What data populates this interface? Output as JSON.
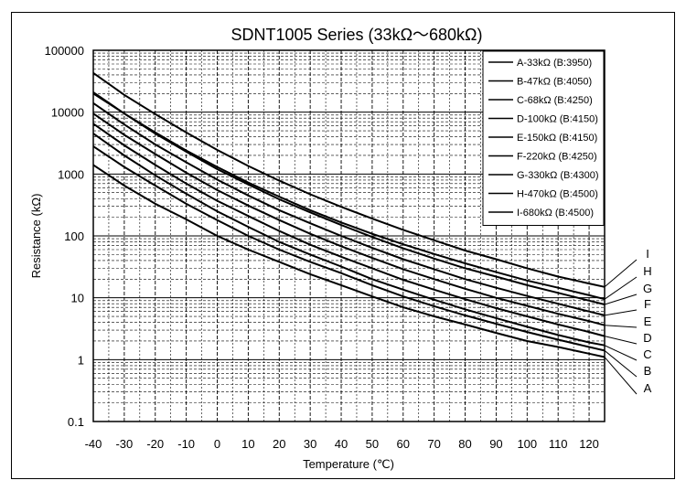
{
  "chart_data": {
    "type": "line",
    "title": "SDNT1005 Series (33kΩ～680kΩ)",
    "xlabel": "Temperature (℃)",
    "ylabel": "Resistance (kΩ)",
    "x_scale": "linear",
    "y_scale": "log",
    "xlim": [
      -40,
      125
    ],
    "ylim": [
      0.1,
      100000
    ],
    "x_ticks": [
      -40,
      -30,
      -20,
      -10,
      0,
      10,
      20,
      30,
      40,
      50,
      60,
      70,
      80,
      90,
      100,
      110,
      120
    ],
    "y_ticks": [
      0.1,
      1,
      10,
      100,
      1000,
      10000,
      100000
    ],
    "y_tick_labels": [
      "0.1",
      "1",
      "10",
      "100",
      "1000",
      "10000",
      "100000"
    ],
    "grid": true,
    "legend_position": "top-right",
    "x": [
      -40,
      -30,
      -20,
      -10,
      0,
      10,
      20,
      30,
      40,
      50,
      60,
      70,
      80,
      90,
      100,
      110,
      120,
      125
    ],
    "series": [
      {
        "name": "A-33kΩ (B:3950)",
        "label": "A",
        "values": [
          1400,
          650,
          330,
          185,
          100,
          60,
          38,
          24,
          16,
          10.5,
          7,
          5,
          3.7,
          2.7,
          2.0,
          1.6,
          1.25,
          1.1
        ]
      },
      {
        "name": "B-47kΩ (B:4050)",
        "label": "B",
        "values": [
          2800,
          1300,
          650,
          330,
          180,
          100,
          60,
          38,
          25,
          16,
          10.5,
          7.3,
          5.2,
          3.8,
          2.8,
          2.1,
          1.6,
          1.4
        ]
      },
      {
        "name": "C-68kΩ (B:4250)",
        "label": "C",
        "values": [
          4500,
          2000,
          950,
          480,
          250,
          140,
          80,
          50,
          32,
          20,
          13.5,
          9.3,
          6.5,
          4.7,
          3.4,
          2.5,
          1.9,
          1.7
        ]
      },
      {
        "name": "D-100kΩ (B:4150)",
        "label": "D",
        "values": [
          6500,
          2900,
          1400,
          700,
          370,
          210,
          120,
          72,
          46,
          30,
          19.5,
          13.5,
          9.5,
          6.8,
          5.0,
          3.7,
          2.8,
          2.4
        ]
      },
      {
        "name": "E-150kΩ (B:4150)",
        "label": "E",
        "values": [
          9500,
          4300,
          2100,
          1050,
          550,
          310,
          180,
          108,
          68,
          44,
          29,
          20,
          14,
          10,
          7.4,
          5.5,
          4.2,
          3.6
        ]
      },
      {
        "name": "F-220kΩ (B:4250)",
        "label": "F",
        "values": [
          14000,
          6300,
          3000,
          1550,
          810,
          450,
          260,
          160,
          100,
          64,
          42,
          29,
          20,
          14.5,
          10.7,
          8.0,
          6.0,
          5.2
        ]
      },
      {
        "name": "G-330kΩ (B:4300)",
        "label": "G",
        "values": [
          21000,
          9500,
          4500,
          2300,
          1200,
          680,
          390,
          240,
          150,
          96,
          63,
          43,
          30,
          22,
          16,
          12,
          9.0,
          7.8
        ]
      },
      {
        "name": "H-470kΩ (B:4500)",
        "label": "H",
        "values": [
          20000,
          9500,
          4700,
          2400,
          1300,
          730,
          430,
          260,
          165,
          108,
          73,
          51,
          36,
          26,
          19,
          14.5,
          11,
          9.5
        ]
      },
      {
        "name": "I-680kΩ (B:4500)",
        "label": "I",
        "values": [
          43000,
          19000,
          9300,
          4700,
          2450,
          1350,
          780,
          470,
          295,
          190,
          125,
          85,
          58,
          42,
          30,
          22,
          17,
          15
        ]
      }
    ]
  }
}
